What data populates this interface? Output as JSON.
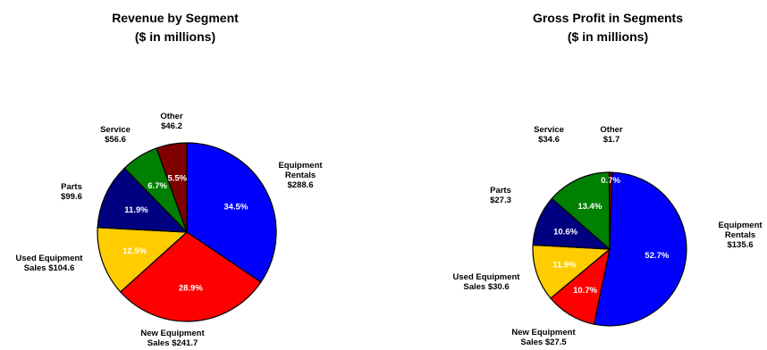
{
  "chart_data": [
    {
      "type": "pie",
      "title": "Revenue by Segment",
      "subtitle": "($ in millions)",
      "slices": [
        {
          "name": "Equipment Rentals",
          "label": [
            "Equipment",
            "Rentals",
            "$288.6"
          ],
          "value": 288.6,
          "percent_label": "34.5%",
          "color": "#0000ff"
        },
        {
          "name": "New Equipment Sales",
          "label": [
            "New Equipment",
            "Sales $241.7"
          ],
          "value": 241.7,
          "percent_label": "28.9%",
          "color": "#ff0000"
        },
        {
          "name": "Used Equipment Sales",
          "label": [
            "Used Equipment",
            "Sales $104.6"
          ],
          "value": 104.6,
          "percent_label": "12.5%",
          "color": "#ffcc00"
        },
        {
          "name": "Parts",
          "label": [
            "Parts",
            "$99.6"
          ],
          "value": 99.6,
          "percent_label": "11.9%",
          "color": "#000080"
        },
        {
          "name": "Service",
          "label": [
            "Service",
            "$56.6"
          ],
          "value": 56.6,
          "percent_label": "6.7%",
          "color": "#008000"
        },
        {
          "name": "Other",
          "label": [
            "Other",
            "$46.2"
          ],
          "value": 46.2,
          "percent_label": "5.5%",
          "color": "#800000"
        }
      ]
    },
    {
      "type": "pie",
      "title": "Gross Profit in Segments",
      "subtitle": "($ in millions)",
      "slices": [
        {
          "name": "Equipment Rentals",
          "label": [
            "Equipment",
            "Rentals",
            "$135.6"
          ],
          "value": 135.6,
          "percent_label": "52.7%",
          "color": "#0000ff"
        },
        {
          "name": "New Equipment Sales",
          "label": [
            "New Equipment",
            "Sales $27.5"
          ],
          "value": 27.5,
          "percent_label": "10.7%",
          "color": "#ff0000"
        },
        {
          "name": "Used Equipment Sales",
          "label": [
            "Used Equipment",
            "Sales $30.6"
          ],
          "value": 30.6,
          "percent_label": "11.9%",
          "color": "#ffcc00"
        },
        {
          "name": "Parts",
          "label": [
            "Parts",
            "$27.3"
          ],
          "value": 27.3,
          "percent_label": "10.6%",
          "color": "#000080"
        },
        {
          "name": "Service",
          "label": [
            "Service",
            "$34.6"
          ],
          "value": 34.6,
          "percent_label": "13.4%",
          "color": "#008000"
        },
        {
          "name": "Other",
          "label": [
            "Other",
            "$1.7"
          ],
          "value": 1.7,
          "percent_label": "0.7%",
          "color": "#800000"
        }
      ]
    }
  ]
}
